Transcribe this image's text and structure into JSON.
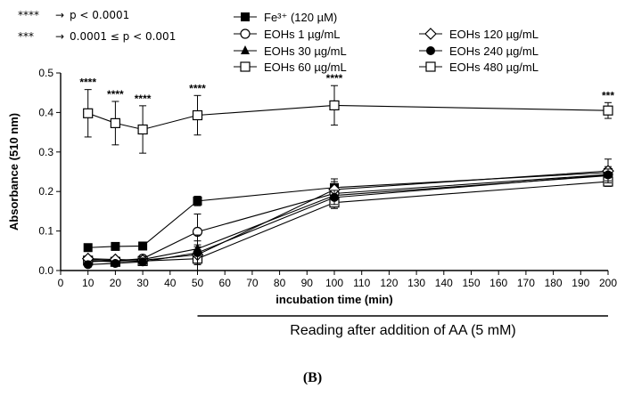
{
  "significance_key": [
    {
      "stars": "****",
      "arrow": "→",
      "text": "p < 0.0001"
    },
    {
      "stars": "***",
      "arrow": "→",
      "text": "0.0001 ≤ p < 0.001"
    }
  ],
  "panel_label": "(B)",
  "reading_note": "Reading after addition of AA (5 mM)",
  "chart_data": {
    "type": "line",
    "xlabel": "incubation time (min)",
    "ylabel": "Absorbance (510 nm)",
    "xlim": [
      0,
      200
    ],
    "ylim": [
      0,
      0.5
    ],
    "xticks": [
      0,
      10,
      20,
      30,
      40,
      50,
      60,
      70,
      80,
      90,
      100,
      110,
      120,
      130,
      140,
      150,
      160,
      170,
      180,
      190,
      200
    ],
    "yticks": [
      0.0,
      0.1,
      0.2,
      0.3,
      0.4,
      0.5
    ],
    "ytick_labels": [
      "0.0",
      "0.1",
      "0.2",
      "0.3",
      "0.4",
      "0.5"
    ],
    "grid": false,
    "legend_placement": "top",
    "x": [
      10,
      20,
      30,
      50,
      100,
      200
    ],
    "series": [
      {
        "name": "Fe³⁺ (120 µM)",
        "marker": "square-filled",
        "values": [
          0.058,
          0.061,
          0.062,
          0.176,
          0.21,
          0.248
        ],
        "errors": [
          0.004,
          0.004,
          0.004,
          0.012,
          0.022,
          0.015
        ]
      },
      {
        "name": "EOHs 1 µg/mL",
        "marker": "circle-open",
        "values": [
          0.028,
          0.025,
          0.03,
          0.098,
          0.195,
          0.243
        ],
        "errors": [
          0.006,
          0.006,
          0.006,
          0.045,
          0.018,
          0.016
        ]
      },
      {
        "name": "EOHs 30 µg/mL",
        "marker": "triangle-filled",
        "values": [
          0.022,
          0.025,
          0.028,
          0.055,
          0.19,
          0.24
        ],
        "errors": [
          0.006,
          0.006,
          0.006,
          0.035,
          0.018,
          0.016
        ]
      },
      {
        "name": "EOHs 60 µg/mL",
        "marker": "square-open",
        "values": [
          0.025,
          0.022,
          0.024,
          0.03,
          0.172,
          0.225
        ],
        "errors": [
          0.006,
          0.006,
          0.006,
          0.03,
          0.015,
          0.012
        ]
      },
      {
        "name": "EOHs 120 µg/mL",
        "marker": "diamond-open",
        "values": [
          0.03,
          0.028,
          0.026,
          0.04,
          0.205,
          0.252
        ],
        "errors": [
          0.006,
          0.006,
          0.006,
          0.025,
          0.02,
          0.03
        ]
      },
      {
        "name": "EOHs 240 µg/mL",
        "marker": "circle-filled",
        "values": [
          0.015,
          0.018,
          0.022,
          0.045,
          0.185,
          0.242
        ],
        "errors": [
          0.006,
          0.006,
          0.006,
          0.03,
          0.018,
          0.015
        ]
      },
      {
        "name": "EOHs 480 µg/mL",
        "marker": "square-open",
        "values": [
          0.398,
          0.373,
          0.357,
          0.393,
          0.418,
          0.405
        ],
        "errors": [
          0.06,
          0.055,
          0.06,
          0.05,
          0.05,
          0.02
        ]
      }
    ],
    "annotations": [
      {
        "x": 10,
        "text": "****"
      },
      {
        "x": 20,
        "text": "****"
      },
      {
        "x": 30,
        "text": "****"
      },
      {
        "x": 50,
        "text": "****"
      },
      {
        "x": 100,
        "text": "****"
      },
      {
        "x": 200,
        "text": "***"
      }
    ]
  }
}
